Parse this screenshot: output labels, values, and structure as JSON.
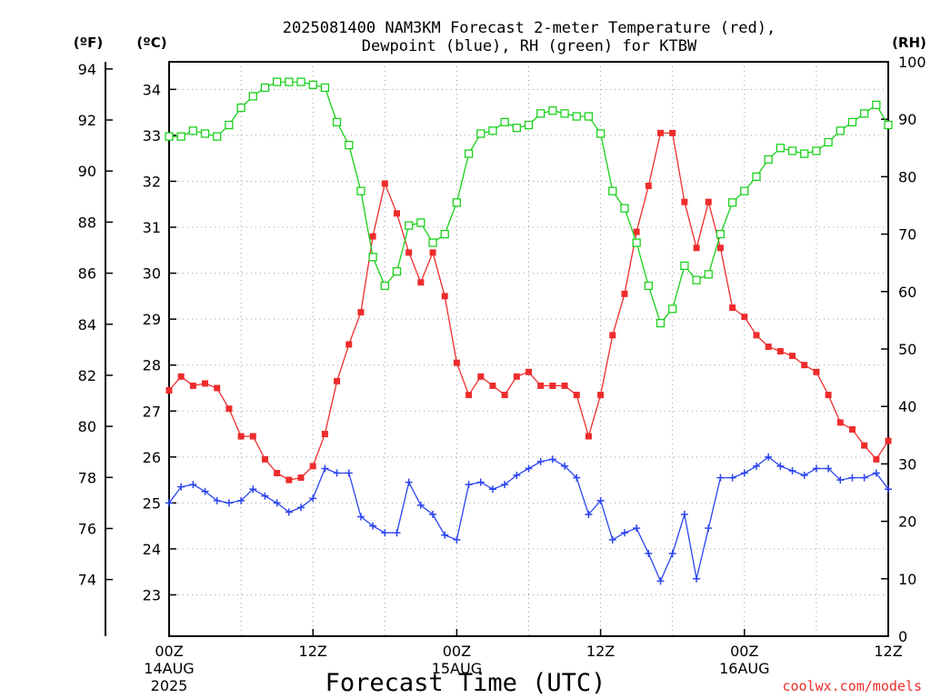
{
  "chart_data": {
    "type": "line",
    "title_line1": "2025081400 NAM3KM Forecast 2-meter Temperature (red),",
    "title_line2": "Dewpoint (blue), RH (green) for KTBW",
    "xlabel": "Forecast Time (UTC)",
    "credit": "coolwx.com/models",
    "axis_units": {
      "fahrenheit": "(ºF)",
      "celsius": "(ºC)",
      "rh": "(RH)"
    },
    "x_ticks": [
      {
        "hour": 0,
        "label": "00Z",
        "sub1": "14AUG",
        "sub2": "2025"
      },
      {
        "hour": 12,
        "label": "12Z",
        "sub1": "",
        "sub2": ""
      },
      {
        "hour": 24,
        "label": "00Z",
        "sub1": "15AUG",
        "sub2": ""
      },
      {
        "hour": 36,
        "label": "12Z",
        "sub1": "",
        "sub2": ""
      },
      {
        "hour": 48,
        "label": "00Z",
        "sub1": "16AUG",
        "sub2": ""
      },
      {
        "hour": 60,
        "label": "12Z",
        "sub1": "",
        "sub2": ""
      }
    ],
    "xlim_hours": [
      0,
      60
    ],
    "celsius_range": [
      22.1,
      34.6
    ],
    "celsius_ticks": [
      "23",
      "24",
      "25",
      "26",
      "27",
      "28",
      "29",
      "30",
      "31",
      "32",
      "33",
      "34"
    ],
    "fahrenheit_ticks": [
      "74",
      "76",
      "78",
      "80",
      "82",
      "84",
      "86",
      "88",
      "90",
      "92",
      "94"
    ],
    "rh_range": [
      0,
      100
    ],
    "rh_ticks": [
      "0",
      "10",
      "20",
      "30",
      "40",
      "50",
      "60",
      "70",
      "80",
      "90",
      "100"
    ],
    "grid": true,
    "colors": {
      "temperature": "#ee2c2c",
      "dewpoint": "#2c45ee",
      "rh": "#1bd11b",
      "grid": "#a0a0a0",
      "credit": "#ee2c2c"
    },
    "series": [
      {
        "name": "Temperature",
        "units": "C",
        "marker": "square-filled",
        "values": [
          27.45,
          27.75,
          27.55,
          27.6,
          27.5,
          27.05,
          26.45,
          26.45,
          25.95,
          25.65,
          25.5,
          25.55,
          25.8,
          26.5,
          27.65,
          28.45,
          29.15,
          30.8,
          31.95,
          31.3,
          30.45,
          29.8,
          30.45,
          29.5,
          28.05,
          27.35,
          27.75,
          27.55,
          27.35,
          27.75,
          27.85,
          27.55,
          27.55,
          27.55,
          27.35,
          26.45,
          27.35,
          28.65,
          29.55,
          30.9,
          31.9,
          33.05,
          33.05,
          31.55,
          30.55,
          31.55,
          30.55,
          29.25,
          29.05,
          28.65,
          28.4,
          28.3,
          28.2,
          28.0,
          27.85,
          27.35,
          26.75,
          26.6,
          26.25,
          25.95,
          26.35
        ]
      },
      {
        "name": "Dewpoint",
        "units": "C",
        "marker": "plus",
        "values": [
          25.0,
          25.35,
          25.4,
          25.25,
          25.05,
          25.0,
          25.05,
          25.3,
          25.15,
          25.0,
          24.8,
          24.9,
          25.1,
          25.75,
          25.65,
          25.65,
          24.7,
          24.5,
          24.35,
          24.35,
          25.45,
          24.95,
          24.75,
          24.3,
          24.2,
          25.4,
          25.45,
          25.3,
          25.4,
          25.6,
          25.75,
          25.9,
          25.95,
          25.8,
          25.55,
          24.75,
          25.05,
          24.2,
          24.35,
          24.45,
          23.9,
          23.3,
          23.9,
          24.75,
          23.35,
          24.45,
          25.55,
          25.55,
          25.65,
          25.8,
          26.0,
          25.8,
          25.7,
          25.6,
          25.75,
          25.75,
          25.5,
          25.55,
          25.55,
          25.65,
          25.3
        ]
      },
      {
        "name": "RH",
        "units": "%",
        "marker": "square-open",
        "values": [
          87.0,
          87.0,
          88.0,
          87.5,
          87.0,
          89.0,
          92.0,
          94.0,
          95.5,
          96.5,
          96.5,
          96.5,
          96.0,
          95.5,
          89.5,
          85.5,
          77.5,
          66.0,
          61.0,
          63.5,
          71.5,
          72.0,
          68.5,
          70.0,
          75.5,
          84.0,
          87.5,
          88.0,
          89.5,
          88.5,
          89.0,
          91.0,
          91.5,
          91.0,
          90.5,
          90.5,
          87.5,
          77.5,
          74.5,
          68.5,
          61.0,
          54.5,
          57.0,
          64.5,
          62.0,
          63.0,
          70.0,
          75.5,
          77.5,
          80.0,
          83.0,
          85.0,
          84.5,
          84.0,
          84.5,
          86.0,
          88.0,
          89.5,
          91.0,
          92.5,
          89.0
        ]
      }
    ]
  }
}
